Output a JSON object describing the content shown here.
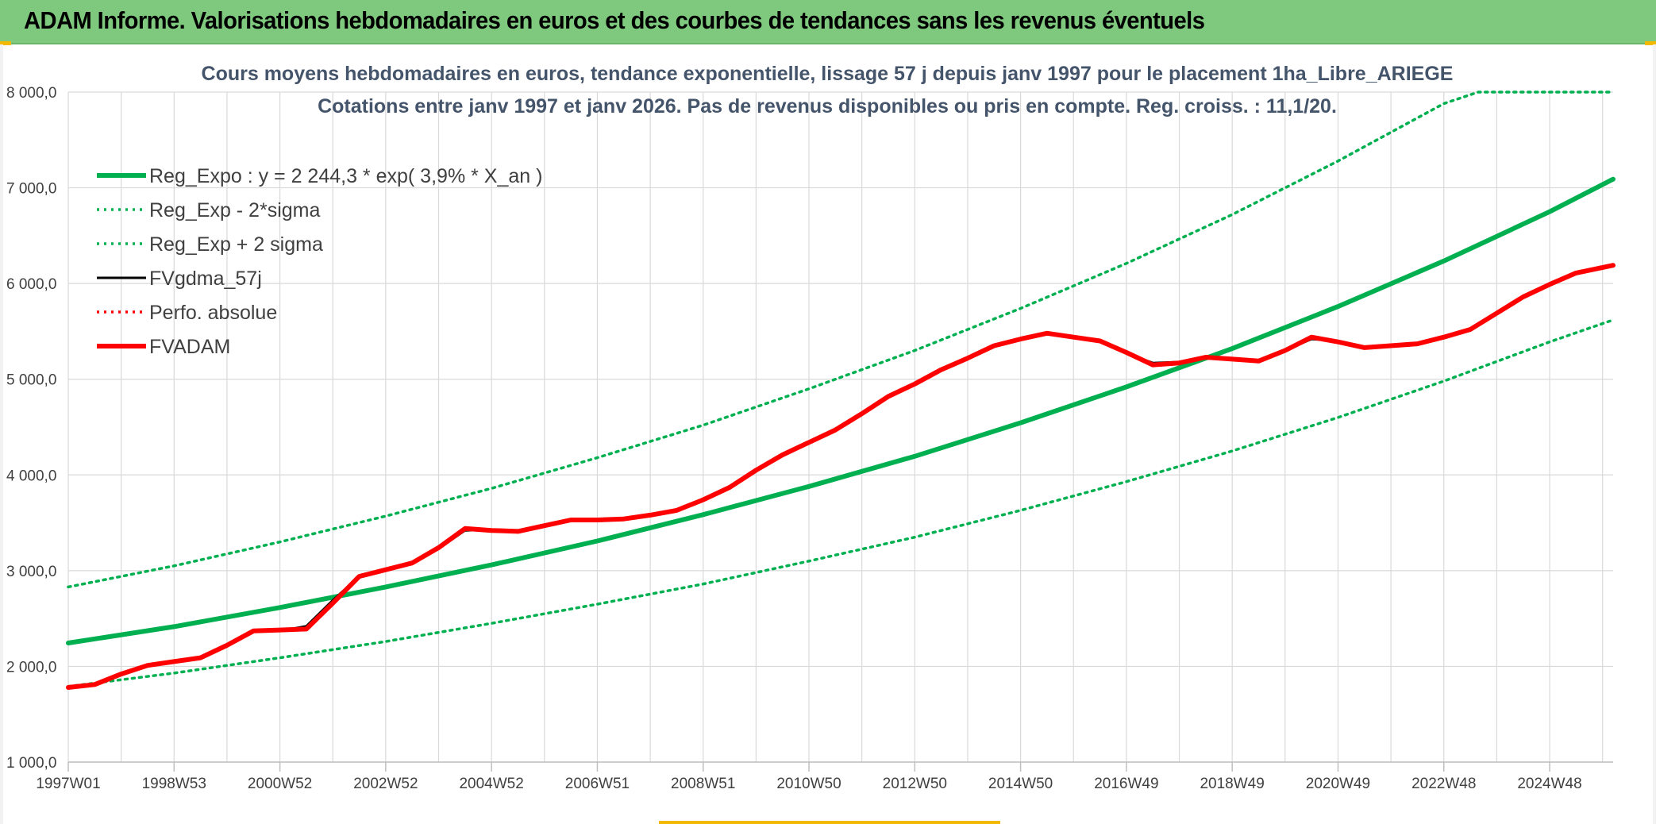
{
  "page_title": "ADAM Informe. Valorisations hebdomadaires en euros et des courbes de tendances sans les revenus éventuels",
  "colors": {
    "title_bar": "#7ec97e",
    "trend_green": "#00b050",
    "red": "#ff0000",
    "black": "#000000",
    "grid": "#d9d9d9",
    "subtitle": "#44546a"
  },
  "chart_data": {
    "type": "line",
    "title": "Cours moyens hebdomadaires en euros, tendance exponentielle, lissage 57 j depuis janv 1997 pour le placement 1ha_Libre_ARIEGE",
    "subtitle": "Cotations entre janv 1997 et janv 2026. Pas de revenus disponibles ou pris en compte. Reg. croiss. : 11,1/20.",
    "xlabel": "",
    "ylabel": "",
    "x_range": [
      1997.0,
      2026.2
    ],
    "ylim": [
      1000,
      8000
    ],
    "grid": true,
    "legend_position": "top-left",
    "y_ticks": [
      {
        "value": 1000,
        "label": "1 000,0"
      },
      {
        "value": 2000,
        "label": "2 000,0"
      },
      {
        "value": 3000,
        "label": "3 000,0"
      },
      {
        "value": 4000,
        "label": "4 000,0"
      },
      {
        "value": 5000,
        "label": "5 000,0"
      },
      {
        "value": 6000,
        "label": "6 000,0"
      },
      {
        "value": 7000,
        "label": "7 000,0"
      },
      {
        "value": 8000,
        "label": "8 000,0"
      }
    ],
    "x_ticks": [
      {
        "x": 1997.0,
        "label": "1997W01"
      },
      {
        "x": 1999.0,
        "label": "1998W53"
      },
      {
        "x": 2001.0,
        "label": "2000W52"
      },
      {
        "x": 2003.0,
        "label": "2002W52"
      },
      {
        "x": 2005.0,
        "label": "2004W52"
      },
      {
        "x": 2007.0,
        "label": "2006W51"
      },
      {
        "x": 2009.0,
        "label": "2008W51"
      },
      {
        "x": 2011.0,
        "label": "2010W50"
      },
      {
        "x": 2013.0,
        "label": "2012W50"
      },
      {
        "x": 2015.0,
        "label": "2014W50"
      },
      {
        "x": 2017.0,
        "label": "2016W49"
      },
      {
        "x": 2019.0,
        "label": "2018W49"
      },
      {
        "x": 2021.0,
        "label": "2020W49"
      },
      {
        "x": 2023.0,
        "label": "2022W48"
      },
      {
        "x": 2025.0,
        "label": "2024W48"
      }
    ],
    "series": [
      {
        "name": "Reg_Expo : y = 2 244,3 * exp( 3,9% *  X_an )",
        "style": "solid-thick",
        "color": "#00b050",
        "x": [
          1997,
          1999,
          2001,
          2003,
          2005,
          2007,
          2009,
          2011,
          2013,
          2015,
          2017,
          2019,
          2021,
          2023,
          2025,
          2026.2
        ],
        "values": [
          2244,
          2415,
          2615,
          2830,
          3060,
          3310,
          3585,
          3880,
          4195,
          4545,
          4920,
          5320,
          5760,
          6235,
          6750,
          7090
        ]
      },
      {
        "name": "Reg_Exp - 2*sigma",
        "style": "dotted",
        "color": "#00b050",
        "x": [
          1997,
          1999,
          2001,
          2003,
          2005,
          2007,
          2009,
          2011,
          2013,
          2015,
          2017,
          2019,
          2021,
          2023,
          2025,
          2026.2
        ],
        "values": [
          1790,
          1930,
          2090,
          2260,
          2450,
          2650,
          2860,
          3100,
          3350,
          3630,
          3930,
          4250,
          4600,
          4980,
          5390,
          5620
        ]
      },
      {
        "name": "Reg_Exp + 2 sigma",
        "style": "dotted",
        "color": "#00b050",
        "x": [
          1997,
          1999,
          2001,
          2003,
          2005,
          2007,
          2009,
          2011,
          2013,
          2015,
          2017,
          2019,
          2021,
          2023,
          2023.65,
          2026.2
        ],
        "values": [
          2830,
          3050,
          3300,
          3570,
          3860,
          4180,
          4520,
          4900,
          5300,
          5740,
          6210,
          6720,
          7280,
          7880,
          8000,
          8000
        ]
      },
      {
        "name": "FVgdma_57j",
        "style": "solid",
        "color": "#000000",
        "x": [
          1997,
          1997.5,
          1998,
          1998.5,
          1999,
          1999.5,
          2000,
          2000.5,
          2001,
          2001.5,
          2002,
          2002.5,
          2003,
          2003.5,
          2004,
          2004.5,
          2005,
          2005.5,
          2006,
          2006.5,
          2007,
          2007.5,
          2008,
          2008.5,
          2009,
          2009.5,
          2010,
          2010.5,
          2011,
          2011.5,
          2012,
          2012.5,
          2013,
          2013.5,
          2014,
          2014.5,
          2015,
          2015.5,
          2016,
          2016.5,
          2017,
          2017.5,
          2018,
          2018.5,
          2019,
          2019.5,
          2020,
          2020.5,
          2021,
          2021.5,
          2022,
          2022.5,
          2023,
          2023.5,
          2024,
          2024.5,
          2025,
          2025.5,
          2026.2
        ],
        "values": [
          1780,
          1820,
          1920,
          2010,
          2050,
          2090,
          2220,
          2360,
          2370,
          2420,
          2690,
          2940,
          3010,
          3070,
          3230,
          3420,
          3430,
          3420,
          3470,
          3520,
          3530,
          3540,
          3580,
          3630,
          3730,
          3860,
          4040,
          4210,
          4340,
          4470,
          4640,
          4820,
          4950,
          5100,
          5220,
          5350,
          5420,
          5470,
          5440,
          5390,
          5270,
          5170,
          5180,
          5220,
          5210,
          5190,
          5300,
          5420,
          5400,
          5330,
          5350,
          5370,
          5440,
          5510,
          5680,
          5850,
          5980,
          6100,
          6190
        ]
      },
      {
        "name": "Perfo. absolue",
        "style": "dotted",
        "color": "#ff0000",
        "x": [],
        "values": []
      },
      {
        "name": "FVADAM",
        "style": "solid-thick",
        "color": "#ff0000",
        "x": [
          1997,
          1997.5,
          1998,
          1998.5,
          1999,
          1999.5,
          2000,
          2000.5,
          2001,
          2001.5,
          2002,
          2002.5,
          2003,
          2003.5,
          2004,
          2004.5,
          2005,
          2005.5,
          2006,
          2006.5,
          2007,
          2007.5,
          2008,
          2008.5,
          2009,
          2009.5,
          2010,
          2010.5,
          2011,
          2011.5,
          2012,
          2012.5,
          2013,
          2013.5,
          2014,
          2014.5,
          2015,
          2015.5,
          2016,
          2016.5,
          2017,
          2017.5,
          2018,
          2018.5,
          2019,
          2019.5,
          2020,
          2020.5,
          2021,
          2021.5,
          2022,
          2022.5,
          2023,
          2023.5,
          2024,
          2024.5,
          2025,
          2025.5,
          2026.2
        ],
        "values": [
          1780,
          1810,
          1920,
          2010,
          2050,
          2090,
          2220,
          2370,
          2380,
          2390,
          2660,
          2940,
          3010,
          3080,
          3240,
          3440,
          3420,
          3410,
          3470,
          3530,
          3530,
          3540,
          3580,
          3630,
          3740,
          3870,
          4050,
          4210,
          4340,
          4470,
          4640,
          4820,
          4950,
          5100,
          5220,
          5350,
          5420,
          5480,
          5440,
          5400,
          5280,
          5150,
          5170,
          5230,
          5210,
          5190,
          5300,
          5440,
          5390,
          5330,
          5350,
          5370,
          5440,
          5520,
          5690,
          5860,
          5990,
          6110,
          6190
        ]
      }
    ]
  }
}
